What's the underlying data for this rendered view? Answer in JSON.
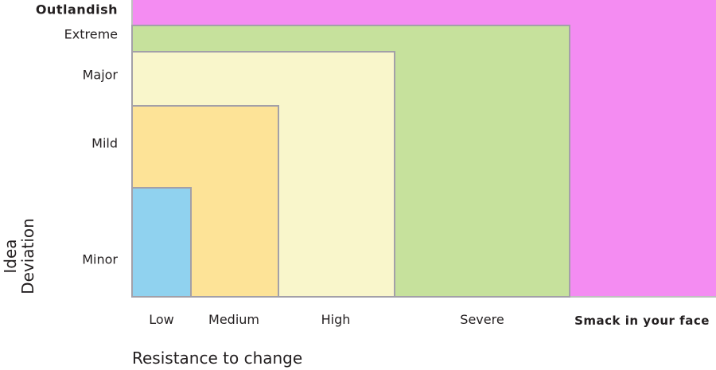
{
  "levels": [
    {
      "y_label": "Outlandish",
      "x_label": "Smack in your face",
      "color": "#f48cf2"
    },
    {
      "y_label": "Extreme",
      "x_label": "Severe",
      "color": "#c6e19c"
    },
    {
      "y_label": "Major",
      "x_label": "High",
      "color": "#f9f6cb"
    },
    {
      "y_label": "Mild",
      "x_label": "Medium",
      "color": "#fde397"
    },
    {
      "y_label": "Minor",
      "x_label": "Low",
      "color": "#90d2ef"
    }
  ],
  "y_axis_title": "Idea\nDeviation",
  "y_axis_title_lines": [
    "Idea",
    "Deviation"
  ],
  "x_axis_title": "Resistance to change",
  "border_color": "#a3a0a8"
}
